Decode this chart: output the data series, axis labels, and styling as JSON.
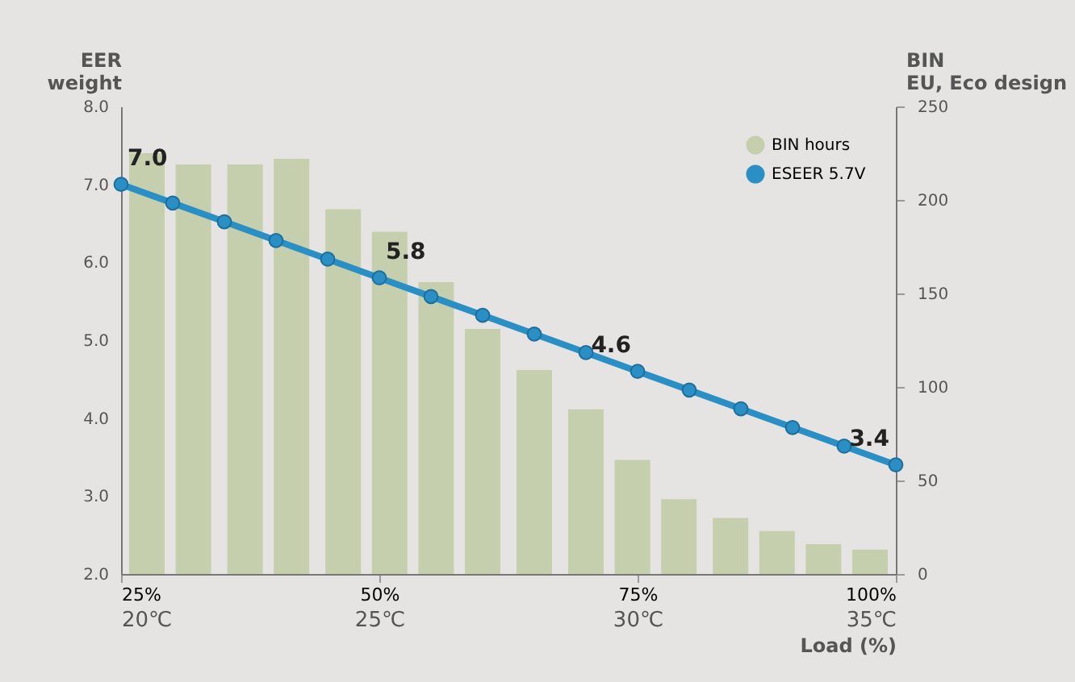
{
  "chart_data": {
    "type": "bar",
    "ylabel": "EER\nweight",
    "y2label": "BIN\nEU, Eco design",
    "xlabel": "Load (%)",
    "xlim": [
      25,
      100
    ],
    "xticks": [
      {
        "value": 25,
        "label": "25%"
      },
      {
        "value": 50,
        "label": "50%"
      },
      {
        "value": 75,
        "label": "75%"
      },
      {
        "value": 100,
        "label": "100%"
      }
    ],
    "x2lim": [
      20,
      35
    ],
    "x2ticks": [
      {
        "value": 20,
        "label": "20℃"
      },
      {
        "value": 25,
        "label": "25℃"
      },
      {
        "value": 30,
        "label": "30℃"
      },
      {
        "value": 35,
        "label": "35℃"
      }
    ],
    "ylim": [
      2,
      8
    ],
    "yticks": [
      {
        "value": 2,
        "label": "2.0"
      },
      {
        "value": 3,
        "label": "3.0"
      },
      {
        "value": 4,
        "label": "4.0"
      },
      {
        "value": 5,
        "label": "5.0"
      },
      {
        "value": 6,
        "label": "6.0"
      },
      {
        "value": 7,
        "label": "7.0"
      },
      {
        "value": 8,
        "label": "8.0"
      }
    ],
    "y2lim": [
      0,
      250
    ],
    "y2ticks": [
      0,
      50,
      100,
      150,
      200,
      250
    ],
    "legend": "top right",
    "marker": "circle",
    "series": [
      {
        "name": "BIN hours",
        "axis": "y2",
        "color": "#c5cfae",
        "x": [
          27.5,
          32,
          37,
          41.5,
          46.5,
          51,
          55.5,
          60,
          65,
          70,
          74.5,
          79,
          84,
          88.5,
          93,
          97.5
        ],
        "values": [
          225,
          219,
          219,
          222,
          195,
          183,
          156,
          131,
          109,
          88,
          61,
          40,
          30,
          23,
          16,
          13
        ]
      },
      {
        "name": "ESEER 5.7V",
        "type": "line",
        "color": "#2a8fc4",
        "x": [
          25,
          30,
          35,
          40,
          45,
          50,
          55,
          60,
          65,
          70,
          75,
          80,
          85,
          90,
          95,
          100
        ],
        "values": [
          7.0,
          6.76,
          6.52,
          6.28,
          6.04,
          5.8,
          5.56,
          5.32,
          5.08,
          4.84,
          4.6,
          4.36,
          4.12,
          3.88,
          3.64,
          3.4
        ],
        "value_labels": [
          "7.0",
          null,
          null,
          null,
          null,
          "5.8",
          null,
          null,
          null,
          null,
          "4.6",
          null,
          null,
          null,
          null,
          "3.4"
        ]
      }
    ]
  }
}
